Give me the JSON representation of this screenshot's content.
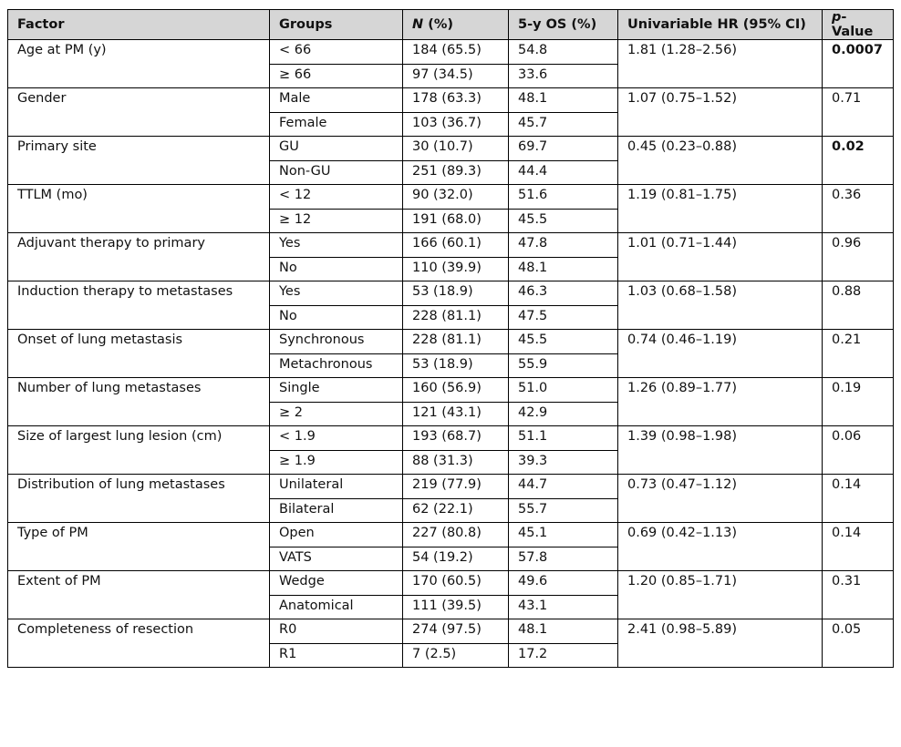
{
  "header": {
    "factor": "Factor",
    "groups": "Groups",
    "n_italic": "N",
    "n_rest": " (%)",
    "os": "5-y OS (%)",
    "hr": "Univariable HR (95% CI)",
    "p_italic": "p",
    "p_rest": "-Value"
  },
  "rows": [
    {
      "factor": "Age at PM (y)",
      "g1": "< 66",
      "n1": "184 (65.5)",
      "os1": "54.8",
      "g2": "≥ 66",
      "n2": "97 (34.5)",
      "os2": "33.6",
      "hr": "1.81 (1.28–2.56)",
      "p": "0.0007",
      "bold": true
    },
    {
      "factor": "Gender",
      "g1": "Male",
      "n1": "178 (63.3)",
      "os1": "48.1",
      "g2": "Female",
      "n2": "103 (36.7)",
      "os2": "45.7",
      "hr": "1.07 (0.75–1.52)",
      "p": "0.71",
      "bold": false
    },
    {
      "factor": "Primary site",
      "g1": "GU",
      "n1": "30 (10.7)",
      "os1": "69.7",
      "g2": "Non-GU",
      "n2": "251 (89.3)",
      "os2": "44.4",
      "hr": "0.45 (0.23–0.88)",
      "p": "0.02",
      "bold": true
    },
    {
      "factor": "TTLM (mo)",
      "g1": "< 12",
      "n1": "90 (32.0)",
      "os1": "51.6",
      "g2": "≥ 12",
      "n2": "191 (68.0)",
      "os2": "45.5",
      "hr": "1.19 (0.81–1.75)",
      "p": "0.36",
      "bold": false
    },
    {
      "factor": "Adjuvant therapy to primary",
      "g1": "Yes",
      "n1": "166 (60.1)",
      "os1": "47.8",
      "g2": "No",
      "n2": "110 (39.9)",
      "os2": "48.1",
      "hr": "1.01 (0.71–1.44)",
      "p": "0.96",
      "bold": false
    },
    {
      "factor": "Induction therapy to metastases",
      "g1": "Yes",
      "n1": "53 (18.9)",
      "os1": "46.3",
      "g2": "No",
      "n2": "228 (81.1)",
      "os2": "47.5",
      "hr": "1.03 (0.68–1.58)",
      "p": "0.88",
      "bold": false
    },
    {
      "factor": "Onset of lung metastasis",
      "g1": "Synchronous",
      "n1": "228 (81.1)",
      "os1": "45.5",
      "g2": "Metachronous",
      "n2": "53 (18.9)",
      "os2": "55.9",
      "hr": "0.74 (0.46–1.19)",
      "p": "0.21",
      "bold": false
    },
    {
      "factor": "Number of lung metastases",
      "g1": "Single",
      "n1": "160 (56.9)",
      "os1": "51.0",
      "g2": "≥ 2",
      "n2": "121 (43.1)",
      "os2": "42.9",
      "hr": "1.26 (0.89–1.77)",
      "p": "0.19",
      "bold": false
    },
    {
      "factor": "Size of largest lung lesion (cm)",
      "g1": "< 1.9",
      "n1": "193 (68.7)",
      "os1": "51.1",
      "g2": "≥ 1.9",
      "n2": "88 (31.3)",
      "os2": "39.3",
      "hr": "1.39 (0.98–1.98)",
      "p": "0.06",
      "bold": false
    },
    {
      "factor": "Distribution of lung metastases",
      "g1": "Unilateral",
      "n1": "219 (77.9)",
      "os1": "44.7",
      "g2": "Bilateral",
      "n2": "62 (22.1)",
      "os2": "55.7",
      "hr": "0.73 (0.47–1.12)",
      "p": "0.14",
      "bold": false
    },
    {
      "factor": "Type of PM",
      "g1": "Open",
      "n1": "227 (80.8)",
      "os1": "45.1",
      "g2": "VATS",
      "n2": "54 (19.2)",
      "os2": "57.8",
      "hr": "0.69 (0.42–1.13)",
      "p": "0.14",
      "bold": false
    },
    {
      "factor": "Extent of PM",
      "g1": "Wedge",
      "n1": "170 (60.5)",
      "os1": "49.6",
      "g2": "Anatomical",
      "n2": "111 (39.5)",
      "os2": "43.1",
      "hr": "1.20 (0.85–1.71)",
      "p": "0.31",
      "bold": false
    },
    {
      "factor": "Completeness of resection",
      "g1": "R0",
      "n1": "274 (97.5)",
      "os1": "48.1",
      "g2": "R1",
      "n2": "7 (2.5)",
      "os2": "17.2",
      "hr": "2.41 (0.98–5.89)",
      "p": "0.05",
      "bold": false
    }
  ]
}
